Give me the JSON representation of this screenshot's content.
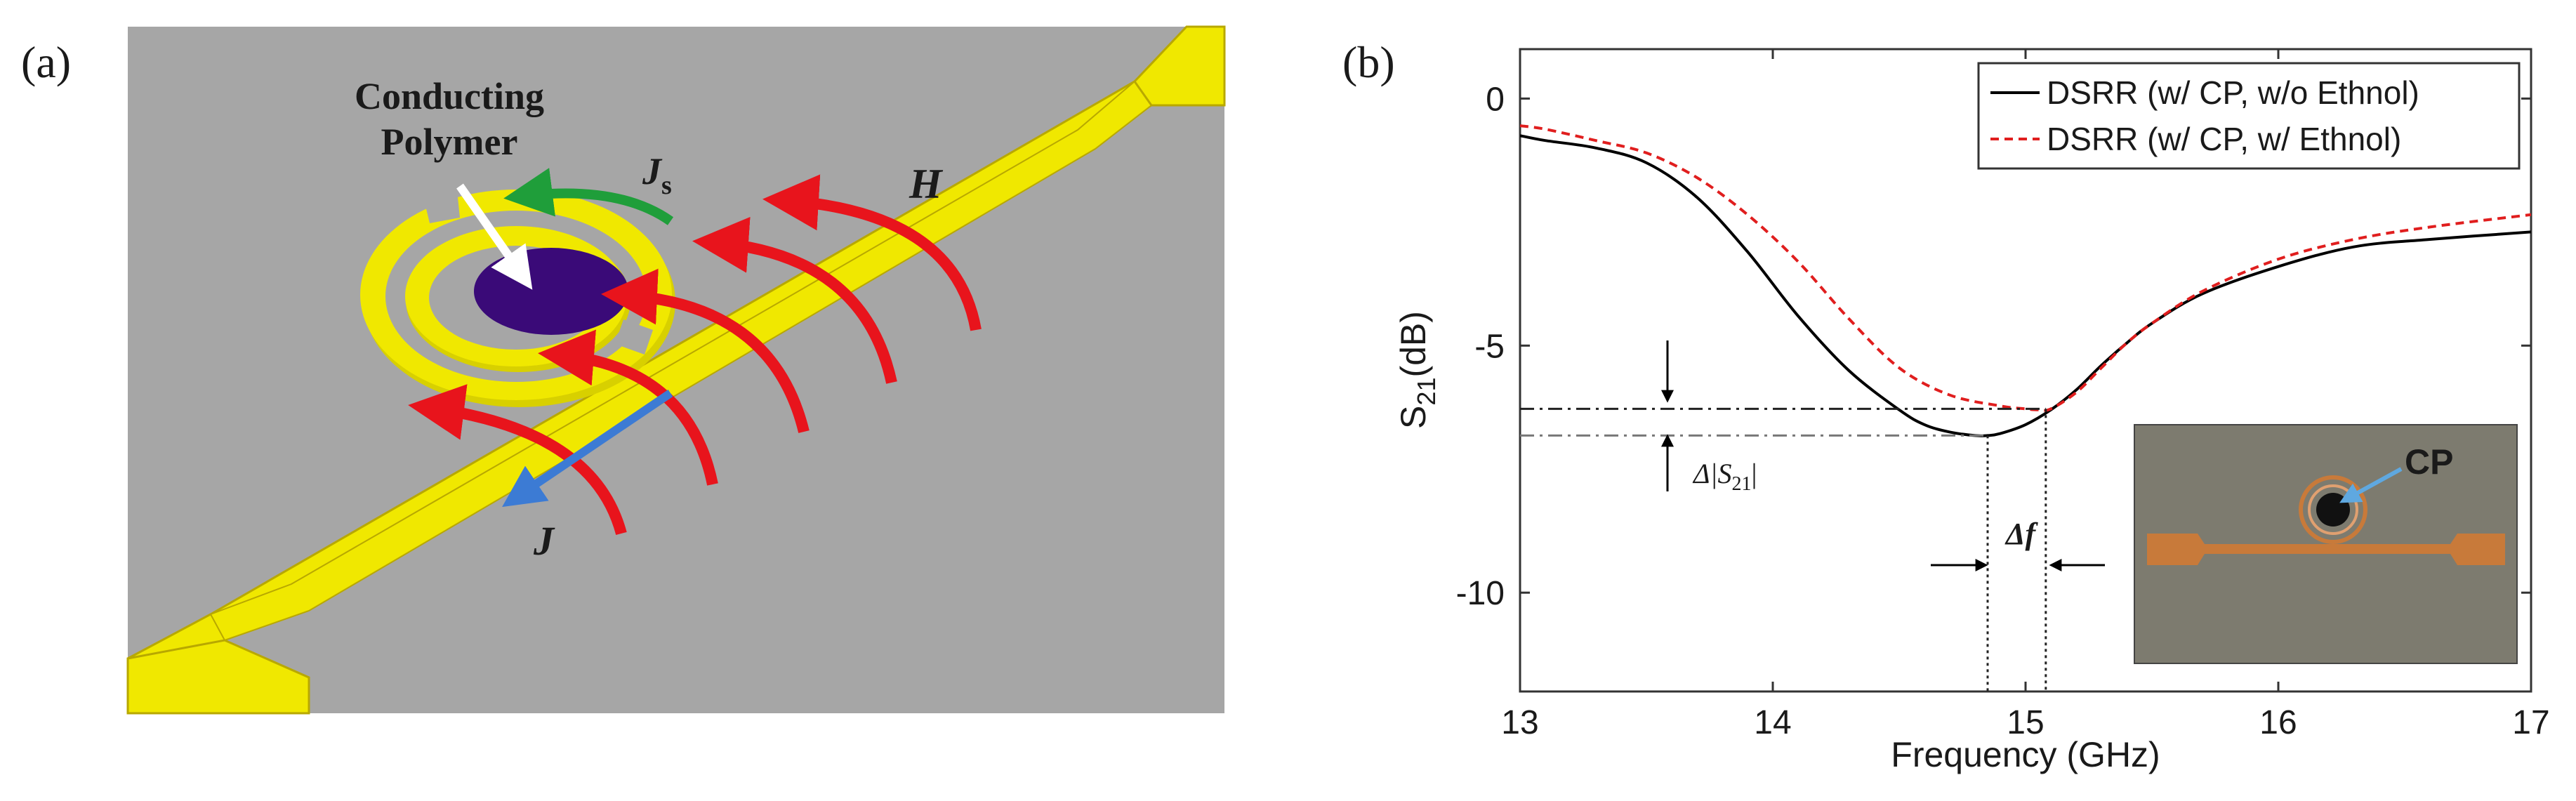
{
  "panel_a": {
    "label": "(a)",
    "polymer_label_line1": "Conducting",
    "polymer_label_line2": "Polymer",
    "js_label": "J",
    "js_sub": "s",
    "h_label": "H",
    "j_label": "J",
    "colors": {
      "background": "#a6a6a6",
      "metal": "#f0e800",
      "metal_edge": "#b8a800",
      "polymer": "#3a0a78",
      "field_arrow": "#e8141c",
      "surface_current": "#1f9e3a",
      "line_current": "#3c7bd4"
    }
  },
  "panel_b": {
    "label": "(b)",
    "delta_s21_text": "Δ|S",
    "delta_s21_sub": "21",
    "delta_s21_close": "|",
    "delta_f_text": "Δf",
    "inset_label": "CP",
    "colors": {
      "series1": "#000000",
      "series2": "#e01e1e",
      "inset_bg": "#7d7b6f",
      "inset_line": "#c87a3a",
      "inset_arrow": "#5fa8e0"
    }
  },
  "chart_data": {
    "type": "line",
    "title": "",
    "xlabel": "Frequency (GHz)",
    "ylabel": "S",
    "ylabel_sub": "21",
    "ylabel_unit": "(dB)",
    "xlim": [
      13,
      17
    ],
    "ylim": [
      -12,
      1
    ],
    "xticks": [
      13,
      14,
      15,
      16,
      17
    ],
    "xtick_labels": [
      "13",
      "14",
      "15",
      "16",
      "17"
    ],
    "yticks": [
      0,
      -5,
      -10
    ],
    "ytick_labels": [
      "0",
      "-5",
      "-10"
    ],
    "grid": false,
    "legend_position": "top-right",
    "series": [
      {
        "name": "DSRR (w/ CP, w/o Ethnol)",
        "color": "#000000",
        "style": "solid",
        "x": [
          13.0,
          13.1,
          13.3,
          13.5,
          13.7,
          13.9,
          14.1,
          14.3,
          14.5,
          14.6,
          14.7,
          14.8,
          14.85,
          14.9,
          15.0,
          15.1,
          15.2,
          15.3,
          15.4,
          15.5,
          15.7,
          16.0,
          16.3,
          16.6,
          17.0
        ],
        "values": [
          -0.75,
          -0.85,
          -1.0,
          -1.3,
          -2.0,
          -3.1,
          -4.4,
          -5.5,
          -6.3,
          -6.6,
          -6.75,
          -6.82,
          -6.82,
          -6.78,
          -6.6,
          -6.3,
          -5.9,
          -5.4,
          -4.95,
          -4.55,
          -3.95,
          -3.4,
          -3.0,
          -2.85,
          -2.7
        ]
      },
      {
        "name": "DSRR (w/ CP, w/ Ethnol)",
        "color": "#e01e1e",
        "style": "dashed",
        "x": [
          13.0,
          13.1,
          13.3,
          13.5,
          13.7,
          13.9,
          14.1,
          14.3,
          14.5,
          14.7,
          14.9,
          15.0,
          15.05,
          15.1,
          15.2,
          15.3,
          15.4,
          15.5,
          15.7,
          16.0,
          16.3,
          16.6,
          17.0
        ],
        "values": [
          -0.55,
          -0.62,
          -0.85,
          -1.1,
          -1.6,
          -2.35,
          -3.3,
          -4.45,
          -5.45,
          -6.0,
          -6.22,
          -6.28,
          -6.3,
          -6.28,
          -5.95,
          -5.45,
          -4.95,
          -4.55,
          -3.9,
          -3.25,
          -2.85,
          -2.6,
          -2.35
        ]
      }
    ],
    "annotations": {
      "dashdot_lines_db": [
        -6.28,
        -6.82
      ],
      "dotted_vertical_ghz": [
        14.85,
        15.08
      ]
    }
  }
}
